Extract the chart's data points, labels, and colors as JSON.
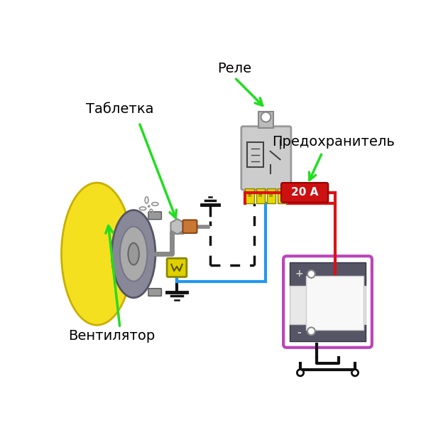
{
  "bg_color": "#ffffff",
  "labels": {
    "relay": "Реле",
    "tablet": "Таблетка",
    "fuse": "Предохранитель",
    "fan": "Вентилятор",
    "fuse_text": "20 А"
  },
  "colors": {
    "green": "#22dd22",
    "red": "#dd1111",
    "blue": "#2299ee",
    "black": "#111111",
    "yellow_fan": "#f5e020",
    "gray_motor": "#aaaaaa",
    "relay_body": "#cccccc",
    "relay_pin": "#bbbbbb",
    "terminal_yellow": "#e8d800",
    "fuse_red": "#cc1111",
    "battery_purple": "#bb44bb",
    "battery_dark": "#555566",
    "battery_light": "#e8e8e8",
    "sensor_silver": "#c0c0c0",
    "sensor_copper": "#c87833",
    "connector_yellow": "#e0d000",
    "white": "#ffffff",
    "dotted": "#222222"
  }
}
